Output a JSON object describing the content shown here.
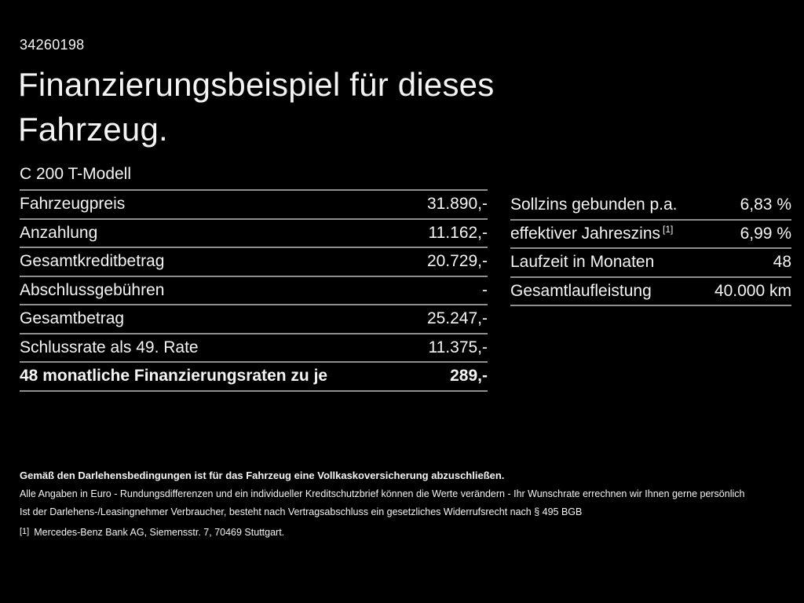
{
  "page": {
    "offer_number": "34260198",
    "title_line1": "Finanzierungsbeispiel für dieses",
    "title_line2": "Fahrzeug.",
    "model": "C 200 T-Modell"
  },
  "left_table": {
    "rows": [
      {
        "label": "Fahrzeugpreis",
        "value": "31.890,-",
        "bold": false
      },
      {
        "label": "Anzahlung",
        "value": "11.162,-",
        "bold": false
      },
      {
        "label": "Gesamtkreditbetrag",
        "value": "20.729,-",
        "bold": false
      },
      {
        "label": "Abschlussgebühren",
        "value": "-",
        "bold": false
      },
      {
        "label": "Gesamtbetrag",
        "value": "25.247,-",
        "bold": false
      },
      {
        "label": "Schlussrate als 49. Rate",
        "value": "11.375,-",
        "bold": false
      },
      {
        "label": "48 monatliche Finanzierungsraten zu je",
        "value": "289,-",
        "bold": true
      }
    ]
  },
  "right_table": {
    "rows": [
      {
        "label": "Sollzins gebunden p.a.",
        "value": "6,83 %",
        "bold": false
      },
      {
        "label": "effektiver Jahreszins",
        "superscript": "[1]",
        "value": "6,99 %",
        "bold": false
      },
      {
        "label": "Laufzeit in Monaten",
        "value": "48",
        "bold": false
      },
      {
        "label": "Gesamtlaufleistung",
        "value": "40.000 km",
        "bold": false
      }
    ]
  },
  "footer": {
    "bold_note": "Gemäß den Darlehensbedingungen ist für das Fahrzeug eine Vollkaskoversicherung abzuschließen.",
    "note_line1": "Alle Angaben in Euro - Rundungsdifferenzen und ein individueller Kreditschutzbrief können die Werte verändern - Ihr Wunschrate errechnen wir Ihnen gerne persönlich",
    "note_line2": "Ist der Darlehens-/Leasingnehmer Verbraucher, besteht nach Vertragsabschluss ein gesetzliches Widerrufsrecht nach § 495 BGB",
    "footnote_marker": "[1]",
    "footnote_text": "Mercedes-Benz Bank AG, Siemensstr. 7, 70469 Stuttgart."
  },
  "colors": {
    "background": "#000000",
    "text": "#f4f4f4",
    "divider": "#8f8f8f"
  }
}
